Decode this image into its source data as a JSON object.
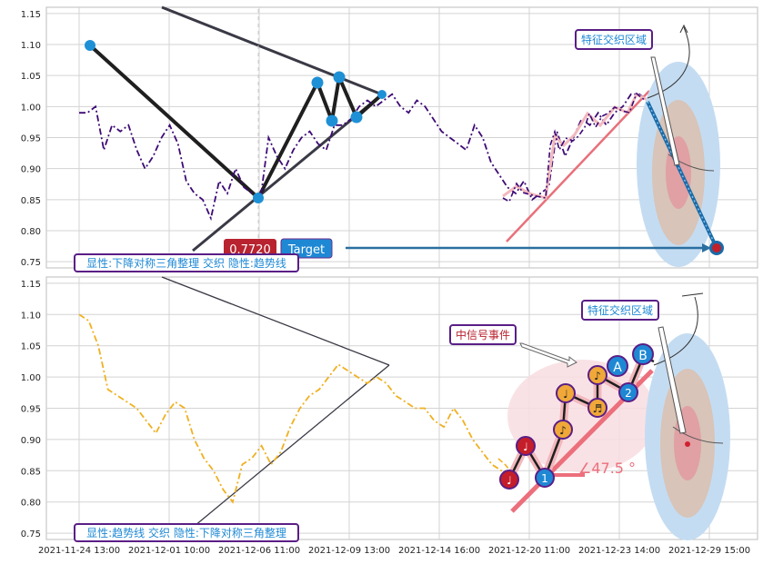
{
  "chart_data": [
    {
      "type": "line",
      "panel": "top",
      "ylim": [
        0.74,
        1.16
      ],
      "yticks": [
        "1.15",
        "1.10",
        "1.05",
        "1.00",
        "0.95",
        "0.90",
        "0.85",
        "0.80",
        "0.75"
      ],
      "grid": true,
      "series": [
        {
          "values": [
            0.99,
            0.99,
            1.0,
            0.93,
            0.97,
            0.96,
            0.97,
            0.93,
            0.9,
            0.92,
            0.95,
            0.97,
            0.94,
            0.88,
            0.86,
            0.85,
            0.82,
            0.88,
            0.86,
            0.9,
            0.87,
            0.86,
            0.85,
            0.95,
            0.92,
            0.9,
            0.93,
            0.95,
            0.96,
            0.94,
            0.93,
            0.97,
            0.97,
            0.98,
            1.0,
            1.01,
            1.0,
            1.01,
            1.02,
            1.0,
            0.99,
            1.01,
            1.0,
            0.98,
            0.96,
            0.95,
            0.94,
            0.93,
            0.97,
            0.95,
            0.91,
            0.89,
            0.87,
            0.86,
            0.88,
            0.85,
            0.86,
            0.87,
            0.96,
            0.92,
            0.95,
            0.98,
            0.97,
            0.99,
            0.97,
            0.99,
            1.0,
            1.02,
            1.02,
            1.01
          ]
        }
      ],
      "pivots": [
        {
          "x": 1,
          "y": 1.1
        },
        {
          "x": 20,
          "y": 0.853
        },
        {
          "x": 26,
          "y": 1.04
        },
        {
          "x": 27,
          "y": 0.978
        },
        {
          "x": 28,
          "y": 1.047
        },
        {
          "x": 29,
          "y": 0.985
        },
        {
          "x": 31,
          "y": 1.02
        }
      ],
      "badges": {
        "price": "0.7720",
        "target": "Target",
        "zone": "特征交织区域",
        "pattern": "显性:下降对称三角整理 交织 隐性:趋势线"
      }
    },
    {
      "type": "line",
      "panel": "bottom",
      "ylim": [
        0.74,
        1.16
      ],
      "yticks": [
        "1.15",
        "1.10",
        "1.05",
        "1.00",
        "0.95",
        "0.90",
        "0.85",
        "0.80",
        "0.75"
      ],
      "grid": true,
      "xticks": [
        "2021-11-24 13:00",
        "2021-12-01 10:00",
        "2021-12-06 11:00",
        "2021-12-09 13:00",
        "2021-12-14 16:00",
        "2021-12-20 11:00",
        "2021-12-23 14:00",
        "2021-12-29 15:00"
      ],
      "series": [
        {
          "values": [
            1.1,
            1.09,
            1.05,
            0.98,
            0.97,
            0.96,
            0.95,
            0.93,
            0.91,
            0.94,
            0.96,
            0.95,
            0.9,
            0.87,
            0.85,
            0.82,
            0.8,
            0.86,
            0.87,
            0.89,
            0.86,
            0.88,
            0.92,
            0.95,
            0.97,
            0.98,
            1.0,
            1.02,
            1.01,
            1.0,
            0.99,
            1.0,
            0.99,
            0.97,
            0.96,
            0.95,
            0.95,
            0.93,
            0.92,
            0.95,
            0.93,
            0.9,
            0.88,
            0.86,
            0.85,
            0.84
          ]
        }
      ],
      "event_label": "中信号事件",
      "angle_label": "∠47.5 °",
      "markers": [
        "♩",
        "♩",
        "♪",
        "♪",
        "♬",
        "1",
        "2",
        "A",
        "B"
      ],
      "badges": {
        "zone": "特征交织区域",
        "pattern": "显性:趋势线 交织 隐性:下降对称三角整理"
      }
    }
  ]
}
